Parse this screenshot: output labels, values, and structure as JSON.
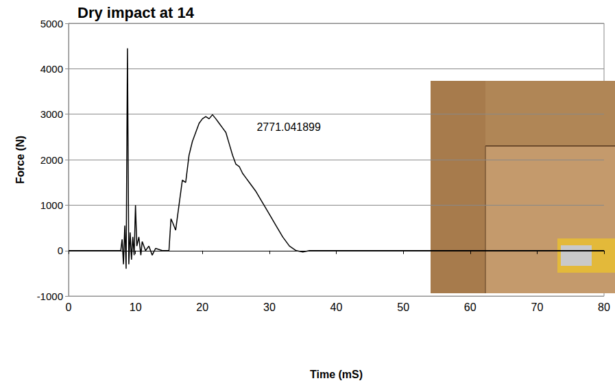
{
  "chart_data": {
    "type": "line",
    "title": "Dry impact at 14",
    "x_label": "Time (mS)",
    "y_label": "Force (N)",
    "x": [
      0,
      7.8,
      8.0,
      8.2,
      8.4,
      8.6,
      8.8,
      9.0,
      9.2,
      9.4,
      9.6,
      9.8,
      10.0,
      10.2,
      10.5,
      10.8,
      11.0,
      11.5,
      12.0,
      12.5,
      13.0,
      14.0,
      15.0,
      15.3,
      15.6,
      16.0,
      16.5,
      17.0,
      17.5,
      18.0,
      18.5,
      19.0,
      19.5,
      20.0,
      20.5,
      21.0,
      21.5,
      22.0,
      22.5,
      23.0,
      23.5,
      24.0,
      24.5,
      25.0,
      25.5,
      26.0,
      26.5,
      27.0,
      28.0,
      29.0,
      30.0,
      31.0,
      32.0,
      33.0,
      34.0,
      35.0,
      36.0,
      80.0
    ],
    "values": [
      0,
      0,
      250,
      -300,
      550,
      -400,
      4450,
      -300,
      400,
      -200,
      300,
      -100,
      1000,
      100,
      300,
      -100,
      200,
      0,
      100,
      -100,
      50,
      0,
      0,
      700,
      600,
      450,
      1000,
      1550,
      1500,
      2100,
      2400,
      2600,
      2800,
      2900,
      2950,
      2900,
      2990,
      2900,
      2800,
      2700,
      2600,
      2350,
      2100,
      1900,
      1850,
      1700,
      1600,
      1500,
      1300,
      1050,
      800,
      550,
      300,
      100,
      0,
      -30,
      0,
      0
    ],
    "color": "#000000",
    "xlim": [
      0,
      80
    ],
    "xticks": [
      0,
      10,
      20,
      30,
      40,
      50,
      60,
      70,
      80
    ],
    "ylim": [
      -1000,
      5000
    ],
    "yticks": [
      -1000,
      0,
      1000,
      2000,
      3000,
      4000,
      5000
    ],
    "grid": true,
    "annotations": [
      {
        "text": "2771.041899",
        "x": 27.6,
        "y": 2720
      }
    ]
  }
}
